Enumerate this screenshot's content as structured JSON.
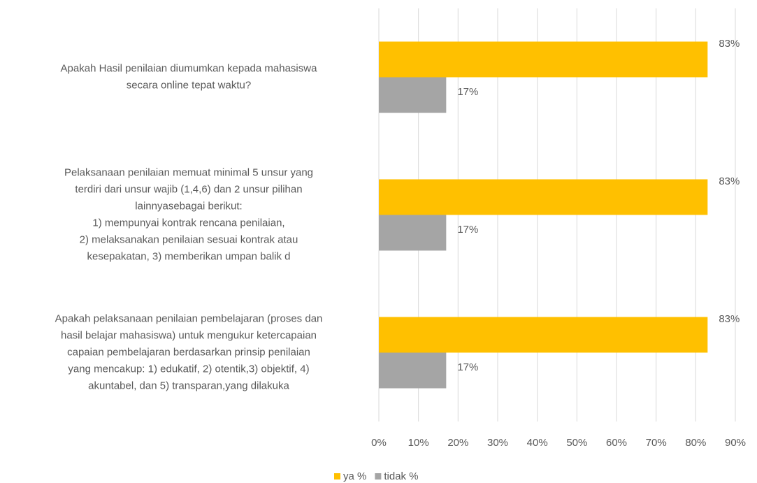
{
  "chart_data": {
    "type": "hbar",
    "categories": [
      "Apakah Hasil penilaian diumumkan kepada mahasiswa\nsecara online tepat waktu?",
      "Pelaksanaan penilaian memuat minimal 5 unsur yang\nterdiri dari unsur wajib (1,4,6) dan 2 unsur pilihan\nlainnyasebagai berikut:\n1) mempunyai kontrak rencana penilaian,\n2) melaksanakan penilaian sesuai kontrak atau\nkesepakatan, 3) memberikan umpan balik d",
      "Apakah pelaksanaan penilaian pembelajaran (proses dan\nhasil belajar mahasiswa) untuk mengukur ketercapaian\ncapaian pembelajaran berdasarkan prinsip penilaian\nyang mencakup: 1) edukatif, 2) otentik,3) objektif, 4)\nakuntabel, dan 5) transparan,yang dilakuka"
    ],
    "series": [
      {
        "name": "ya %",
        "color": "#FFC000",
        "values": [
          83,
          83,
          83
        ],
        "value_labels": [
          "83%",
          "83%",
          "83%"
        ]
      },
      {
        "name": "tidak %",
        "color": "#A5A5A5",
        "values": [
          17,
          17,
          17
        ],
        "value_labels": [
          "17%",
          "17%",
          "17%"
        ]
      }
    ],
    "xlim": [
      0,
      90
    ],
    "xticks": [
      {
        "value": 0,
        "label": "0%"
      },
      {
        "value": 10,
        "label": "10%"
      },
      {
        "value": 20,
        "label": "20%"
      },
      {
        "value": 30,
        "label": "30%"
      },
      {
        "value": 40,
        "label": "40%"
      },
      {
        "value": 50,
        "label": "50%"
      },
      {
        "value": 60,
        "label": "60%"
      },
      {
        "value": 70,
        "label": "70%"
      },
      {
        "value": 80,
        "label": "80%"
      },
      {
        "value": 90,
        "label": "90%"
      }
    ],
    "grid": true,
    "legend": "bottom"
  }
}
